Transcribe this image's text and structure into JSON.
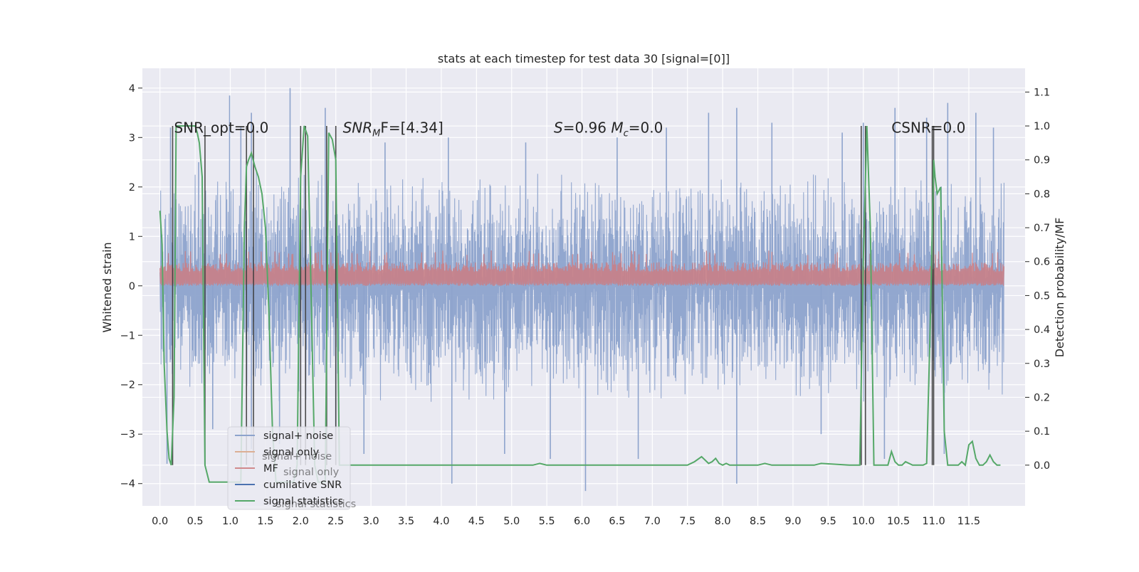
{
  "chart_data": {
    "type": "line",
    "title": "stats at each timestep for test data 30 [signal=[0]]",
    "ylabel": "Whitened strain",
    "y2label": "Detection probability/MF",
    "xlim": [
      -0.25,
      12.3
    ],
    "ylim": [
      -4.45,
      4.4
    ],
    "y2lim": [
      -0.12,
      1.17
    ],
    "x_ticks": [
      "0.0",
      "0.5",
      "1.0",
      "1.5",
      "2.0",
      "2.5",
      "3.0",
      "3.5",
      "4.0",
      "4.5",
      "5.0",
      "5.5",
      "6.0",
      "6.5",
      "7.0",
      "7.5",
      "8.0",
      "8.5",
      "9.0",
      "9.5",
      "10.0",
      "10.5",
      "11.0",
      "11.5"
    ],
    "y_ticks": [
      "−4",
      "−3",
      "−2",
      "−1",
      "0",
      "1",
      "2",
      "3",
      "4"
    ],
    "y2_ticks": [
      "0.0",
      "0.1",
      "0.2",
      "0.3",
      "0.4",
      "0.5",
      "0.6",
      "0.7",
      "0.8",
      "0.9",
      "1.0",
      "1.1"
    ],
    "grid": true,
    "legend_position": "lower-left",
    "colors": {
      "signal_noise": "#4c72b0",
      "signal_only": "#dd8452",
      "mf": "#c44e52",
      "cumulative_snr": "#4c72b0",
      "signal_statistics": "#55a868",
      "background": "#eaeaf2"
    },
    "legend": [
      {
        "key": "signal_noise",
        "label": "signal+ noise",
        "color": "#8da3cc"
      },
      {
        "key": "signal_only",
        "label": "signal only",
        "color": "#dcaf94"
      },
      {
        "key": "mf",
        "label": "MF",
        "color": "#d08a8c"
      },
      {
        "key": "cumulative_snr",
        "label": "cumilative SNR",
        "color": "#4c72b0"
      },
      {
        "key": "signal_statistics",
        "label": "signal statistics",
        "color": "#55a868"
      }
    ],
    "ghost_legend": [
      "signal+ noise",
      "signal only",
      "signal statistics"
    ],
    "annotations": [
      {
        "text": "SNR_opt=0.0",
        "x": 0.2,
        "y": 3.2
      },
      {
        "text_parts": [
          "SNR",
          "M",
          "F=[4.34]"
        ],
        "x": 2.6,
        "y": 3.2
      },
      {
        "text_parts": [
          "S",
          "=0.96   ",
          "M",
          "c",
          "=0.0"
        ],
        "x": 5.6,
        "y": 3.2
      },
      {
        "text": "CSNR=0.0",
        "x": 10.4,
        "y": 3.2
      }
    ],
    "noise_series": {
      "name": "signal+ noise",
      "x_range": [
        0.0,
        12.0
      ],
      "band_upper": 2.4,
      "band_lower": -2.4,
      "peaks": [
        {
          "x": 0.15,
          "y": 3.2
        },
        {
          "x": 0.55,
          "y": 2.5
        },
        {
          "x": 0.99,
          "y": 3.85
        },
        {
          "x": 1.15,
          "y": 3.2
        },
        {
          "x": 1.3,
          "y": 3.5
        },
        {
          "x": 1.85,
          "y": 4.0
        },
        {
          "x": 2.35,
          "y": 3.6
        },
        {
          "x": 3.2,
          "y": 2.9
        },
        {
          "x": 4.1,
          "y": 3.0
        },
        {
          "x": 5.2,
          "y": 2.9
        },
        {
          "x": 6.5,
          "y": 3.0
        },
        {
          "x": 7.2,
          "y": 3.2
        },
        {
          "x": 7.8,
          "y": 3.5
        },
        {
          "x": 8.2,
          "y": 3.6
        },
        {
          "x": 8.7,
          "y": 3.3
        },
        {
          "x": 9.7,
          "y": 3.1
        },
        {
          "x": 10.0,
          "y": 3.3
        },
        {
          "x": 10.45,
          "y": 3.6
        },
        {
          "x": 10.9,
          "y": 3.4
        },
        {
          "x": 11.2,
          "y": 3.7
        },
        {
          "x": 11.6,
          "y": 3.5
        },
        {
          "x": 11.85,
          "y": 3.2
        }
      ],
      "troughs": [
        {
          "x": 0.1,
          "y": -3.6
        },
        {
          "x": 0.75,
          "y": -2.9
        },
        {
          "x": 1.3,
          "y": -3.3
        },
        {
          "x": 1.7,
          "y": -3.2
        },
        {
          "x": 2.5,
          "y": -3.1
        },
        {
          "x": 2.9,
          "y": -3.4
        },
        {
          "x": 4.15,
          "y": -4.0
        },
        {
          "x": 4.9,
          "y": -3.4
        },
        {
          "x": 5.55,
          "y": -3.5
        },
        {
          "x": 6.05,
          "y": -4.15
        },
        {
          "x": 6.8,
          "y": -3.5
        },
        {
          "x": 8.2,
          "y": -4.0
        },
        {
          "x": 9.4,
          "y": -3.0
        },
        {
          "x": 10.3,
          "y": -3.5
        },
        {
          "x": 11.15,
          "y": -3.4
        }
      ]
    },
    "mf_series": {
      "name": "MF",
      "x_range": [
        0.0,
        12.0
      ],
      "baseline": 0.05,
      "typical_top": 0.48,
      "max_top": 0.72
    },
    "statistics_series": {
      "name": "signal statistics",
      "axis": "y2",
      "x": [
        0.0,
        0.03,
        0.06,
        0.1,
        0.13,
        0.16,
        0.2,
        0.23,
        0.26,
        0.3,
        0.35,
        0.4,
        0.45,
        0.5,
        0.53,
        0.56,
        0.6,
        0.64,
        0.7,
        0.8,
        1.0,
        1.15,
        1.2,
        1.23,
        1.26,
        1.3,
        1.35,
        1.4,
        1.45,
        1.5,
        1.55,
        1.6,
        1.65,
        1.7,
        1.8,
        1.85,
        1.9,
        1.95,
        2.0,
        2.05,
        2.1,
        2.15,
        2.2,
        2.25,
        2.3,
        2.35,
        2.4,
        2.45,
        2.5,
        2.55,
        2.6,
        3.0,
        5.3,
        5.4,
        5.5,
        7.5,
        7.6,
        7.7,
        7.75,
        7.8,
        7.85,
        7.9,
        7.95,
        8.0,
        8.05,
        8.1,
        8.5,
        8.6,
        8.7,
        9.3,
        9.4,
        9.8,
        9.95,
        10.0,
        10.05,
        10.1,
        10.15,
        10.3,
        10.35,
        10.4,
        10.45,
        10.5,
        10.55,
        10.6,
        10.7,
        10.8,
        10.85,
        10.9,
        10.95,
        11.0,
        11.02,
        11.05,
        11.1,
        11.15,
        11.2,
        11.3,
        11.35,
        11.4,
        11.45,
        11.5,
        11.55,
        11.6,
        11.65,
        11.7,
        11.75,
        11.8,
        11.85,
        11.9,
        11.95
      ],
      "values": [
        0.75,
        0.65,
        0.3,
        0.1,
        0.02,
        0.0,
        0.2,
        1.0,
        1.0,
        1.0,
        1.0,
        1.0,
        1.0,
        1.0,
        0.98,
        0.95,
        0.85,
        0.0,
        -0.05,
        -0.05,
        -0.05,
        -0.05,
        0.7,
        0.88,
        0.9,
        0.92,
        0.88,
        0.85,
        0.8,
        0.7,
        0.45,
        0.1,
        -0.05,
        -0.05,
        -0.05,
        -0.05,
        -0.05,
        0.0,
        0.85,
        1.0,
        0.97,
        0.5,
        0.0,
        -0.05,
        -0.05,
        -0.05,
        0.98,
        0.96,
        0.9,
        0.0,
        0.0,
        0.0,
        0.0,
        0.005,
        0.0,
        0.0,
        0.01,
        0.025,
        0.015,
        0.005,
        0.01,
        0.02,
        0.005,
        0.0,
        0.005,
        0.0,
        0.0,
        0.005,
        0.0,
        0.0,
        0.005,
        0.0,
        0.0,
        0.6,
        1.0,
        0.7,
        0.0,
        0.0,
        0.0,
        0.04,
        0.01,
        0.0,
        0.0,
        0.01,
        0.0,
        0.0,
        0.0,
        0.005,
        0.4,
        0.9,
        0.85,
        0.8,
        0.82,
        0.1,
        0.0,
        0.0,
        0.0,
        0.01,
        0.0,
        0.06,
        0.07,
        0.02,
        0.0,
        0.0,
        0.01,
        0.03,
        0.01,
        0.0,
        0.0
      ]
    },
    "detection_markers": {
      "axis": "y2",
      "ymin": 0.0,
      "ymax": 1.0,
      "x": [
        0.18,
        0.64,
        1.23,
        1.33,
        2.0,
        2.07,
        2.37,
        2.5,
        9.97,
        10.03,
        10.98,
        11.0
      ]
    }
  }
}
